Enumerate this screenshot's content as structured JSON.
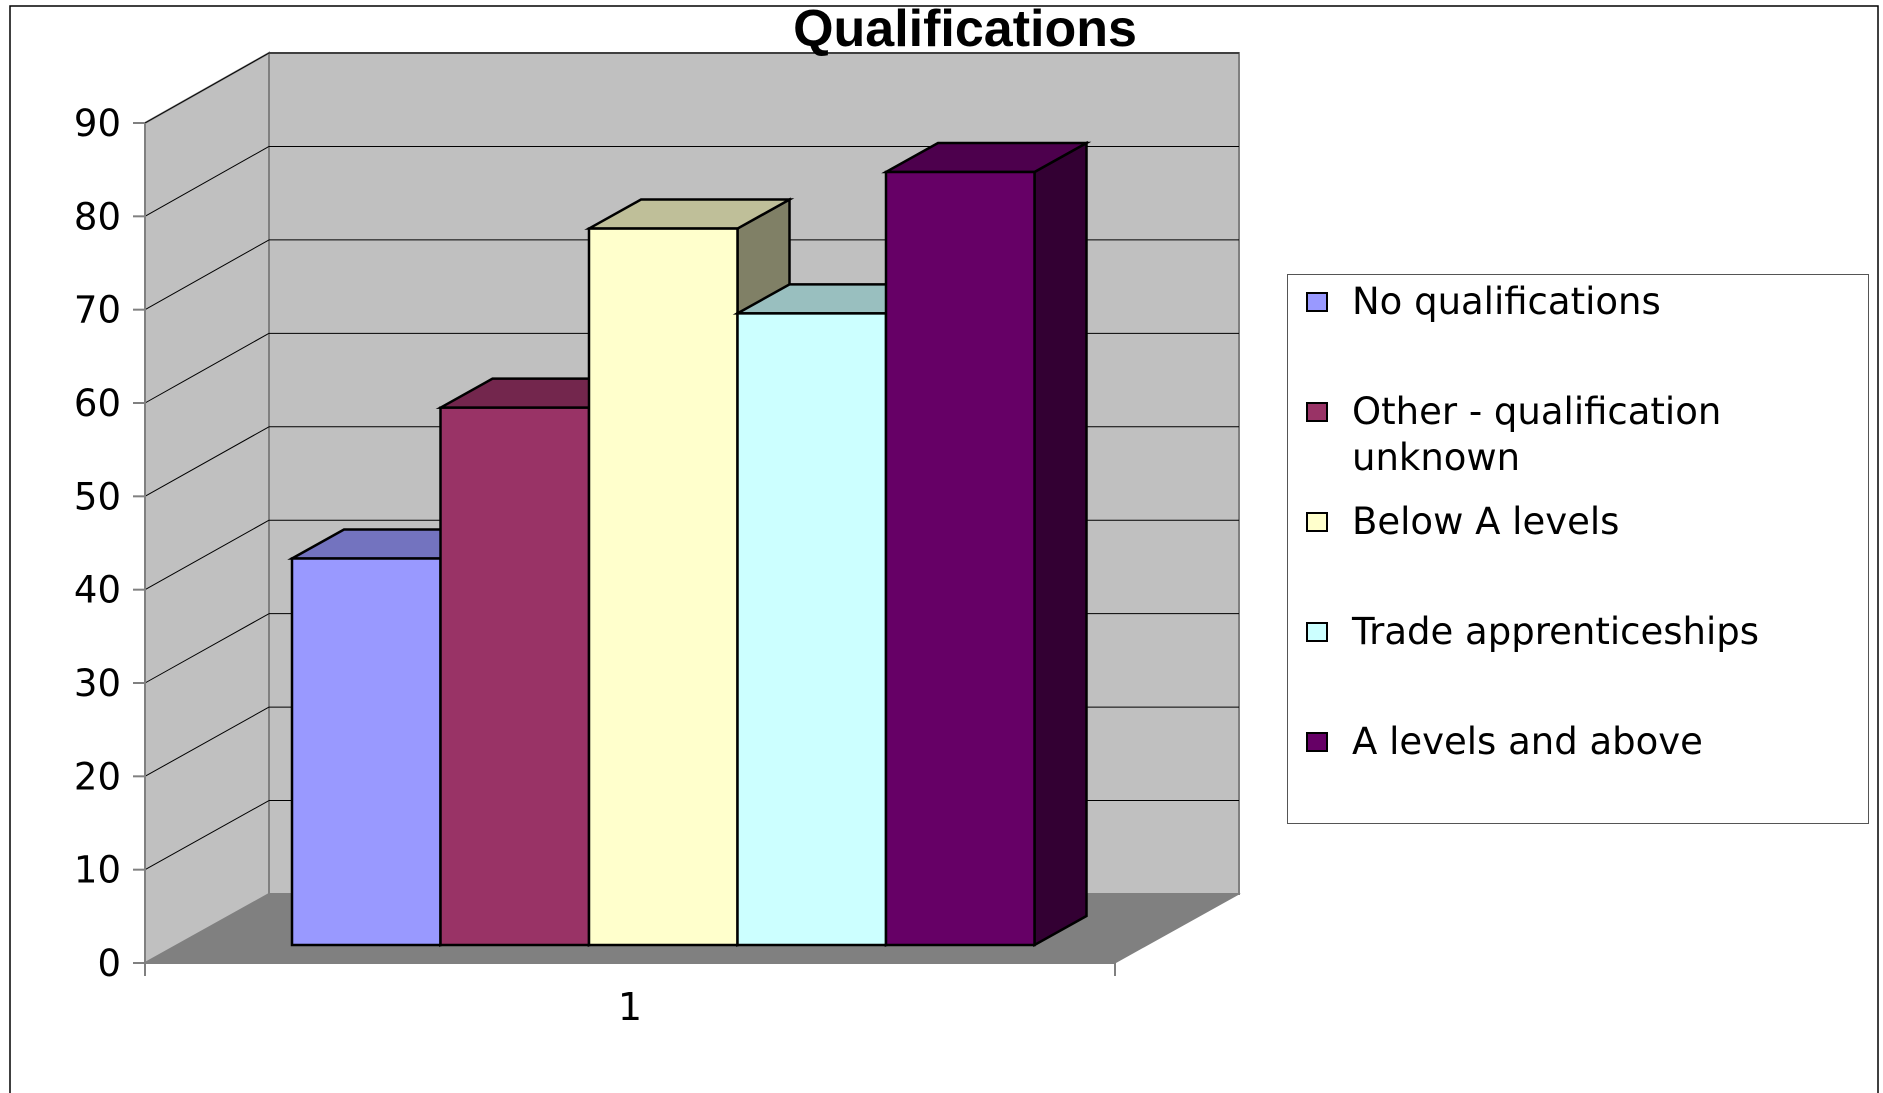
{
  "chart_data": {
    "type": "bar",
    "style": "3d-clustered-column",
    "title": "Qualifications",
    "xlabel": "",
    "ylabel": "",
    "categories": [
      "1"
    ],
    "ylim": [
      0,
      90
    ],
    "yticks": [
      0,
      10,
      20,
      30,
      40,
      50,
      60,
      70,
      80,
      90
    ],
    "grid": true,
    "legend": "right",
    "series": [
      {
        "name": "No qualifications",
        "values": [
          41
        ],
        "color": "#9999FF"
      },
      {
        "name": "Other - qualification unknown",
        "values": [
          57
        ],
        "color": "#993366"
      },
      {
        "name": "Below A levels",
        "values": [
          76
        ],
        "color": "#FFFFCC"
      },
      {
        "name": "Trade apprenticeships",
        "values": [
          67
        ],
        "color": "#CCFFFF"
      },
      {
        "name": "A levels and above",
        "values": [
          82
        ],
        "color": "#660066"
      }
    ]
  }
}
